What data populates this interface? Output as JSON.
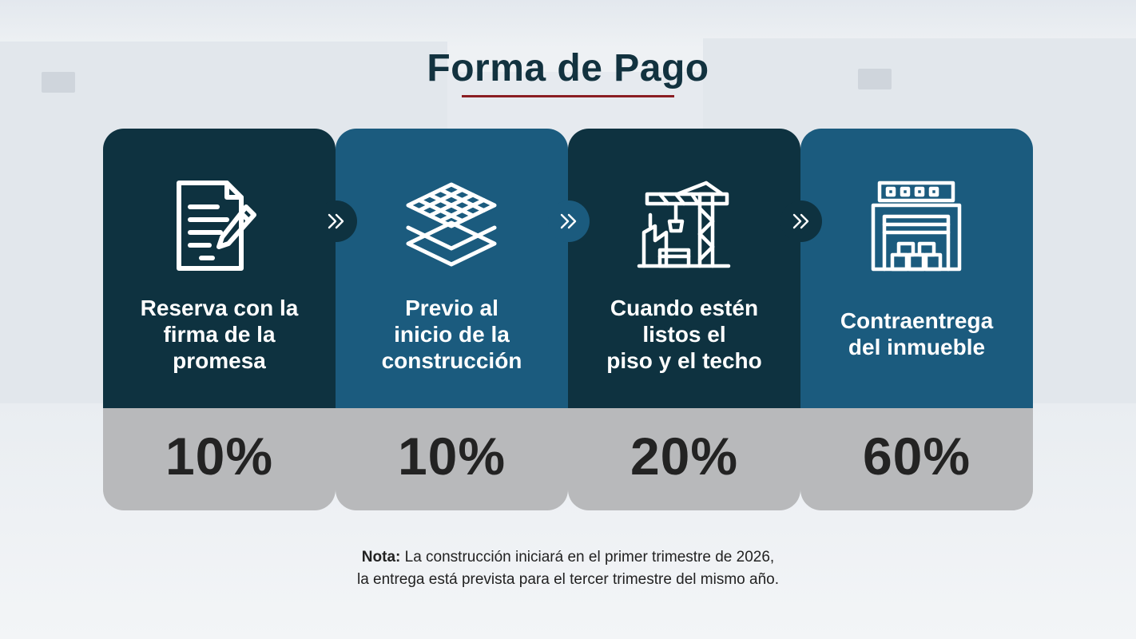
{
  "title": "Forma de Pago",
  "colors": {
    "dark_card": "#0e3240",
    "blue_card": "#1b5b7e",
    "percent_panel": "#b8b9bb",
    "accent_underline": "#8a1d22",
    "title_text": "#12323f"
  },
  "steps": [
    {
      "icon": "document-pen-icon",
      "label": "Reserva con la\nfirma de la\npromesa",
      "percent": "10%"
    },
    {
      "icon": "layers-grid-icon",
      "label": "Previo al\ninicio de la\nconstrucción",
      "percent": "10%"
    },
    {
      "icon": "construction-crane-icon",
      "label": "Cuando estén\nlistos el\npiso y el techo",
      "percent": "20%"
    },
    {
      "icon": "warehouse-icon",
      "label": "Contraentrega\ndel inmueble",
      "percent": "60%"
    }
  ],
  "note": {
    "label": "Nota:",
    "line1": " La construcción iniciará en el primer trimestre de 2026,",
    "line2": "la entrega está prevista para el tercer trimestre del mismo año."
  }
}
